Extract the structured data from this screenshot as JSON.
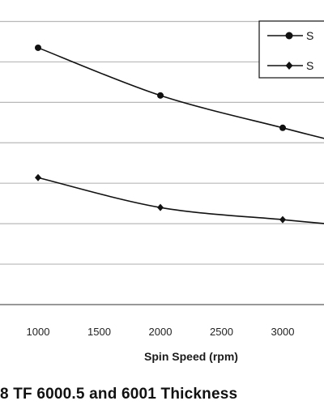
{
  "chart_data": {
    "type": "line",
    "xlabel": "Spin Speed (rpm)",
    "x_ticks": [
      "1000",
      "1500",
      "2000",
      "2500",
      "3000"
    ],
    "xlim": [
      500,
      3350
    ],
    "ylim": [
      0,
      7.25
    ],
    "grid": true,
    "legend": {
      "placement": "top-right",
      "entries": [
        "S",
        "S"
      ]
    },
    "series": [
      {
        "marker": "circle",
        "x": [
          1000,
          2000,
          3000,
          3350
        ],
        "y": [
          6.35,
          5.17,
          4.37,
          4.1
        ]
      },
      {
        "marker": "diamond",
        "x": [
          1000,
          2000,
          3000,
          3350
        ],
        "y": [
          3.14,
          2.4,
          2.1,
          2.0
        ]
      }
    ],
    "caption": "8 TF 6000.5 and 6001 Thickness"
  },
  "colors": {
    "line": "#111111",
    "grid": "#b8b8b8",
    "axis": "#666666"
  }
}
